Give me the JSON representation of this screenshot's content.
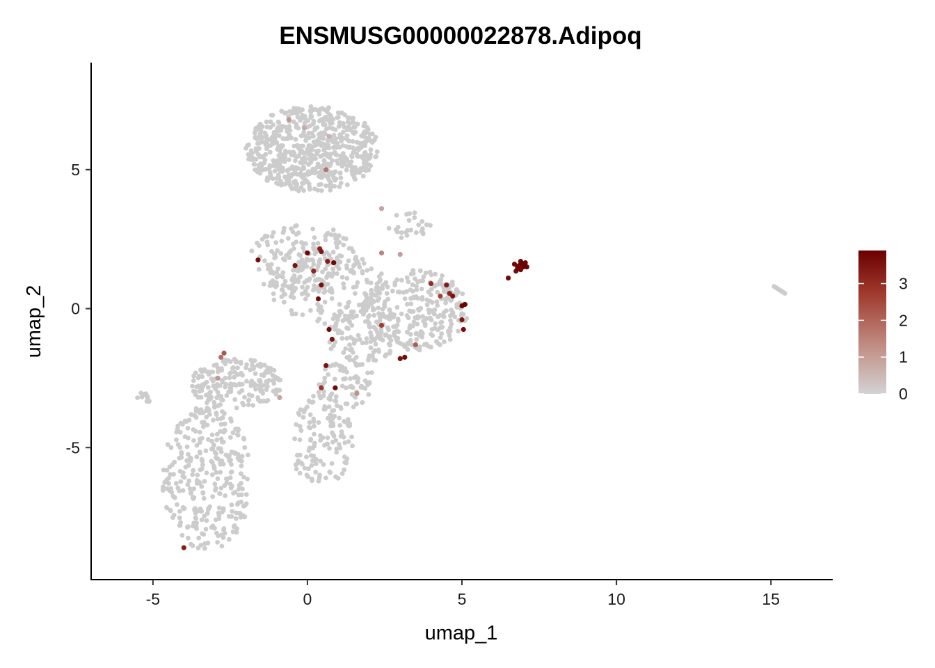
{
  "chart_data": {
    "type": "scatter",
    "title": "ENSMUSG00000022878.Adipoq",
    "xlabel": "umap_1",
    "ylabel": "umap_2",
    "xlim": [
      -7,
      17
    ],
    "ylim": [
      -9.75,
      8.85
    ],
    "x_ticks": [
      -5,
      0,
      5,
      10,
      15
    ],
    "y_ticks": [
      -5,
      0,
      5
    ],
    "x_tick_labels": [
      "-5",
      "0",
      "5",
      "10",
      "15"
    ],
    "y_tick_labels": [
      "-5",
      "0",
      "5"
    ],
    "grid": false,
    "legend": {
      "position": "right",
      "type": "continuous colorbar",
      "min": 0,
      "max": 3.9,
      "ticks": [
        0,
        1,
        2,
        3
      ],
      "tick_labels": [
        "0",
        "1",
        "2",
        "3"
      ],
      "low_color": "#d3d3d3",
      "high_color": "#6b0000"
    },
    "colors": {
      "background_points": "#cccccc",
      "high_expression": "#7a0a0a"
    },
    "cluster_regions": [
      {
        "x": [
          -2.0,
          2.3
        ],
        "y": [
          4.2,
          7.3
        ],
        "n": 650
      },
      {
        "x": [
          -2.0,
          1.8
        ],
        "y": [
          0.5,
          3.0
        ],
        "n": 170
      },
      {
        "x": [
          -1.3,
          2.5
        ],
        "y": [
          -0.5,
          2.2
        ],
        "n": 140
      },
      {
        "x": [
          1.8,
          5.2
        ],
        "y": [
          -1.5,
          1.4
        ],
        "n": 270
      },
      {
        "x": [
          0.5,
          3.0
        ],
        "y": [
          -2.0,
          0.3
        ],
        "n": 110
      },
      {
        "x": [
          -3.8,
          -0.8
        ],
        "y": [
          -3.6,
          -1.8
        ],
        "n": 190
      },
      {
        "x": [
          -4.7,
          -1.8
        ],
        "y": [
          -8.7,
          -3.5
        ],
        "n": 330
      },
      {
        "x": [
          -0.6,
          1.5
        ],
        "y": [
          -6.4,
          -3.0
        ],
        "n": 130
      },
      {
        "x": [
          0.2,
          2.2
        ],
        "y": [
          -3.6,
          -1.8
        ],
        "n": 70
      },
      {
        "x": [
          -5.5,
          -5.0
        ],
        "y": [
          -3.4,
          -3.0
        ],
        "n": 12
      },
      {
        "x": [
          2.5,
          4.0
        ],
        "y": [
          2.5,
          3.5
        ],
        "n": 25
      }
    ],
    "outlier_cluster": {
      "x": [
        15.1,
        15.45
      ],
      "y": [
        0.55,
        0.8
      ],
      "n": 10
    },
    "expressing_cells": [
      {
        "x": -0.6,
        "y": 6.8,
        "v": 0.9
      },
      {
        "x": -0.1,
        "y": 6.5,
        "v": 0.6
      },
      {
        "x": 0.7,
        "y": 6.2,
        "v": 0.5
      },
      {
        "x": 0.6,
        "y": 5.0,
        "v": 1.4
      },
      {
        "x": 2.4,
        "y": 3.6,
        "v": 0.7
      },
      {
        "x": -1.6,
        "y": 1.75,
        "v": 3.6
      },
      {
        "x": -0.4,
        "y": 1.55,
        "v": 3.4
      },
      {
        "x": 0.0,
        "y": 2.0,
        "v": 3.8
      },
      {
        "x": 0.4,
        "y": 2.15,
        "v": 3.0
      },
      {
        "x": 0.45,
        "y": 2.05,
        "v": 3.3
      },
      {
        "x": 0.65,
        "y": 1.7,
        "v": 3.1
      },
      {
        "x": 0.85,
        "y": 1.65,
        "v": 3.7
      },
      {
        "x": 0.2,
        "y": 1.35,
        "v": 2.8
      },
      {
        "x": 0.45,
        "y": 0.85,
        "v": 3.5
      },
      {
        "x": 0.35,
        "y": 0.35,
        "v": 3.6
      },
      {
        "x": 2.4,
        "y": 2.0,
        "v": 1.2
      },
      {
        "x": 4.0,
        "y": 0.9,
        "v": 2.7
      },
      {
        "x": 4.5,
        "y": 0.85,
        "v": 3.2
      },
      {
        "x": 4.3,
        "y": 0.45,
        "v": 2.2
      },
      {
        "x": 4.7,
        "y": 0.45,
        "v": 3.4
      },
      {
        "x": 4.6,
        "y": 0.55,
        "v": 2.9
      },
      {
        "x": 5.0,
        "y": 0.1,
        "v": 3.8
      },
      {
        "x": 5.1,
        "y": 0.15,
        "v": 3.9
      },
      {
        "x": 5.0,
        "y": -0.4,
        "v": 3.3
      },
      {
        "x": 5.05,
        "y": -0.75,
        "v": 3.6
      },
      {
        "x": 0.7,
        "y": -0.75,
        "v": 3.7
      },
      {
        "x": 0.8,
        "y": -1.1,
        "v": 3.4
      },
      {
        "x": 2.4,
        "y": -0.6,
        "v": 2.3
      },
      {
        "x": 3.5,
        "y": -1.3,
        "v": 1.8
      },
      {
        "x": 3.0,
        "y": -1.8,
        "v": 3.5
      },
      {
        "x": 3.15,
        "y": -1.75,
        "v": 3.6
      },
      {
        "x": 0.6,
        "y": -2.05,
        "v": 3.4
      },
      {
        "x": 0.9,
        "y": -2.85,
        "v": 3.7
      },
      {
        "x": 0.45,
        "y": -2.85,
        "v": 2.5
      },
      {
        "x": 1.6,
        "y": -3.05,
        "v": 1.0
      },
      {
        "x": -2.7,
        "y": -1.6,
        "v": 1.9
      },
      {
        "x": -2.8,
        "y": -1.75,
        "v": 1.5
      },
      {
        "x": -2.9,
        "y": -2.5,
        "v": 0.9
      },
      {
        "x": -0.9,
        "y": -3.2,
        "v": 0.7
      },
      {
        "x": -4.0,
        "y": -8.6,
        "v": 3.1
      },
      {
        "x": 3.0,
        "y": 1.95,
        "v": 0.8
      },
      {
        "x": 6.5,
        "y": 1.1,
        "v": 3.6
      },
      {
        "x": 6.7,
        "y": 1.6,
        "v": 3.7
      },
      {
        "x": 6.8,
        "y": 1.45,
        "v": 3.8
      },
      {
        "x": 6.85,
        "y": 1.55,
        "v": 3.9
      },
      {
        "x": 6.9,
        "y": 1.4,
        "v": 3.7
      },
      {
        "x": 6.95,
        "y": 1.6,
        "v": 3.9
      },
      {
        "x": 7.0,
        "y": 1.5,
        "v": 3.8
      },
      {
        "x": 7.05,
        "y": 1.65,
        "v": 3.9
      },
      {
        "x": 6.75,
        "y": 1.35,
        "v": 3.6
      },
      {
        "x": 6.9,
        "y": 1.7,
        "v": 3.8
      },
      {
        "x": 7.0,
        "y": 1.55,
        "v": 3.9
      },
      {
        "x": 6.8,
        "y": 1.5,
        "v": 3.7
      },
      {
        "x": 7.1,
        "y": 1.5,
        "v": 3.8
      }
    ]
  }
}
